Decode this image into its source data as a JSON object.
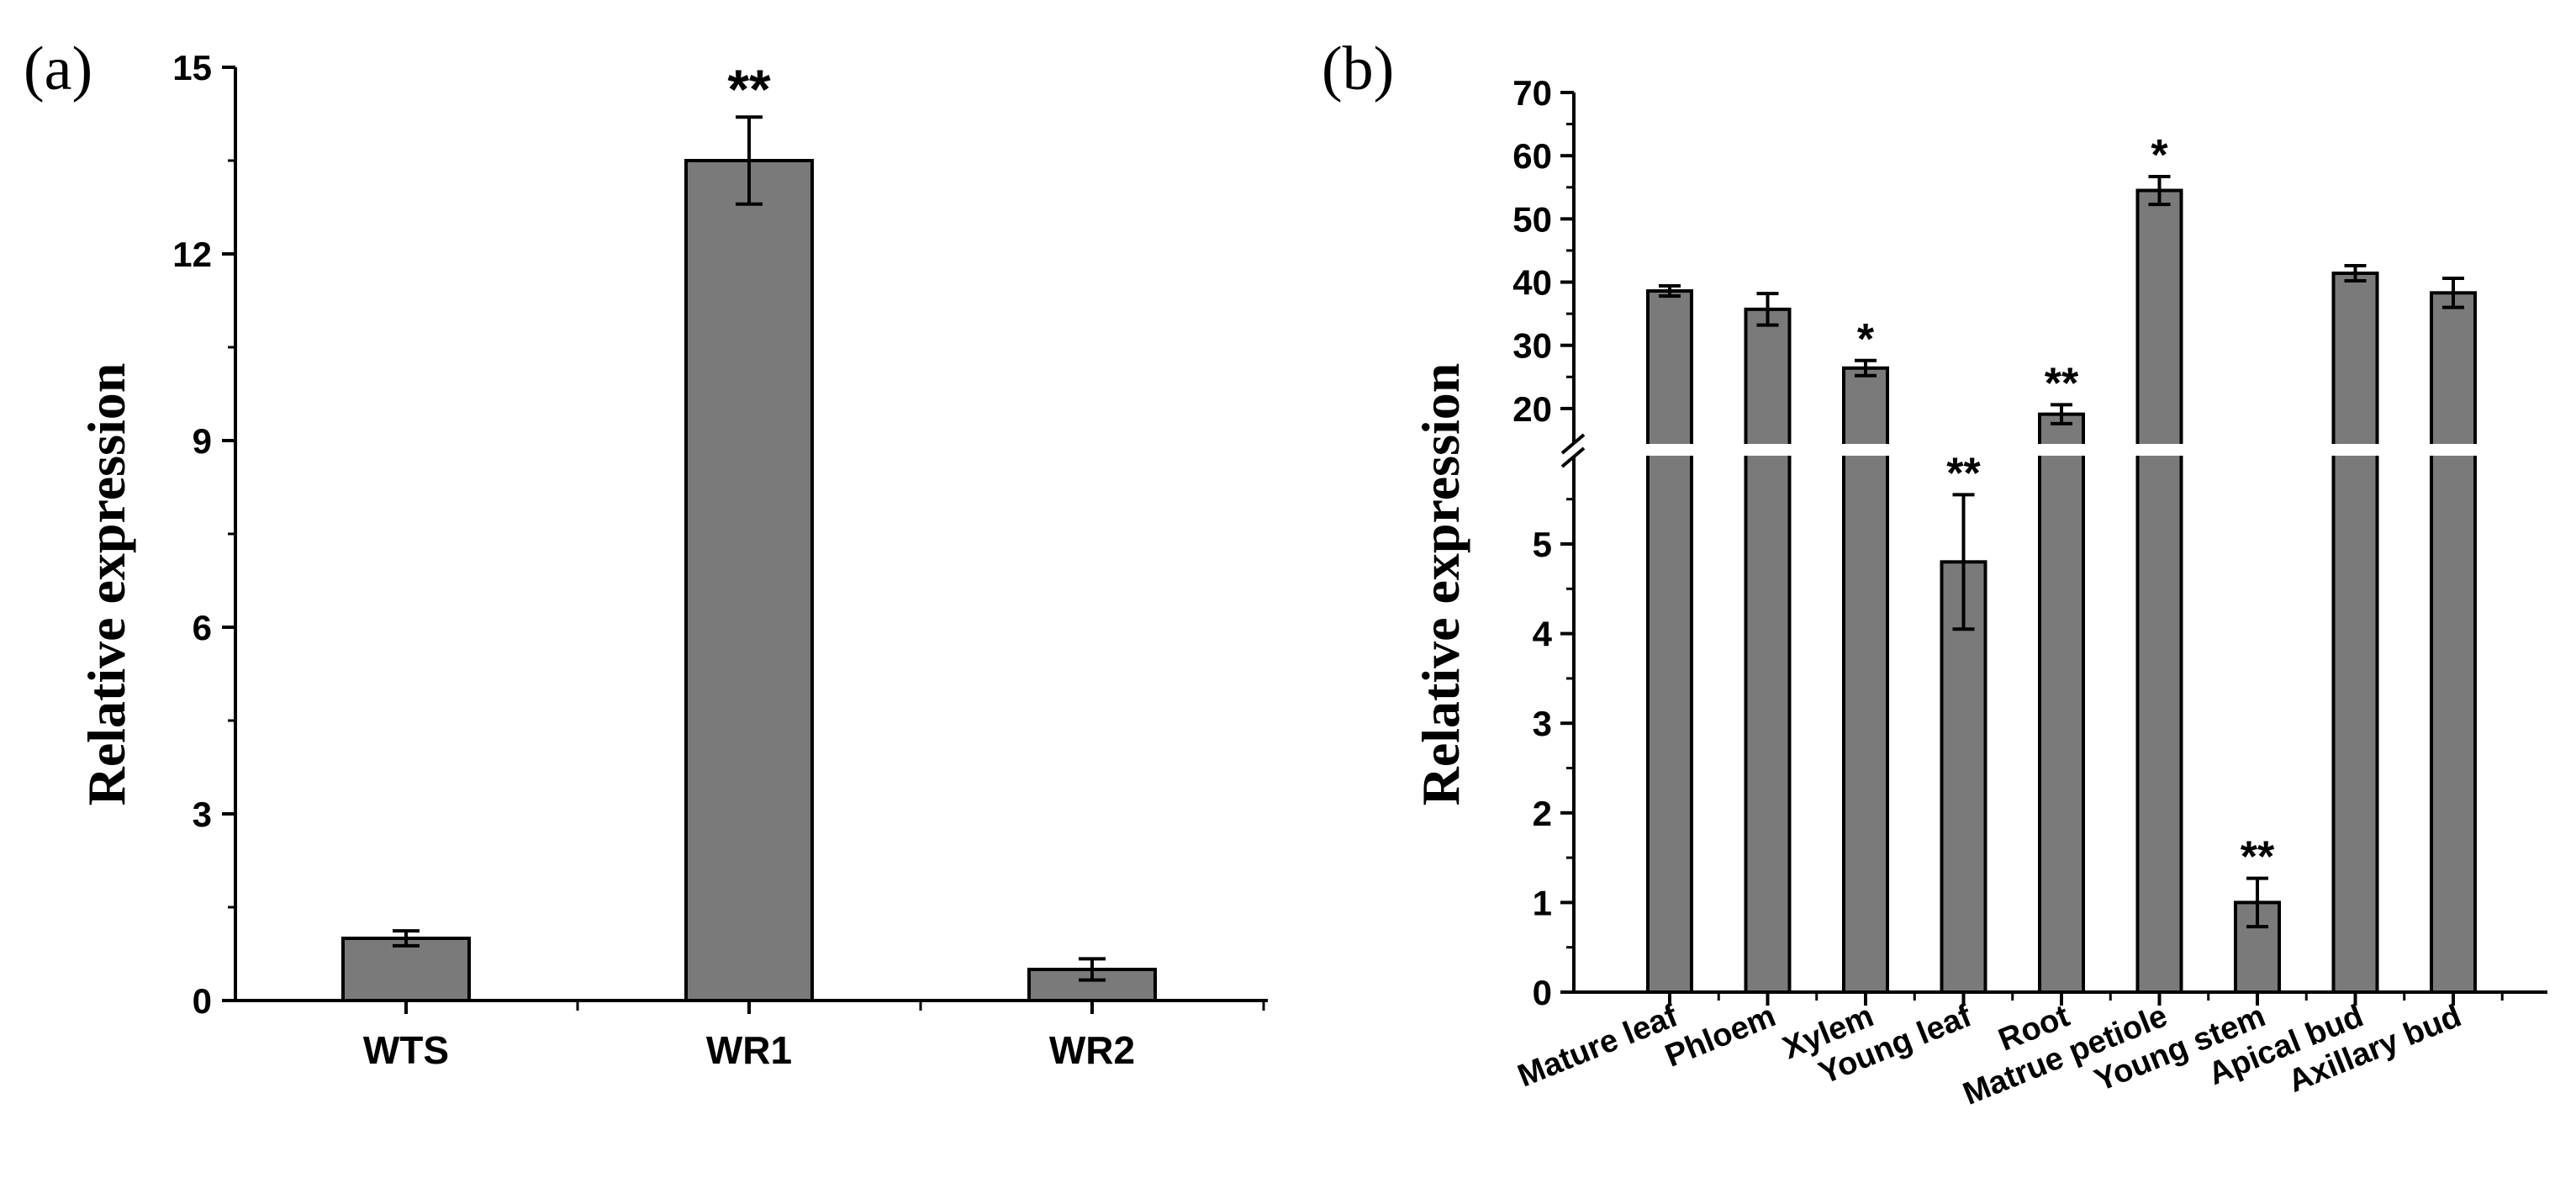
{
  "colors": {
    "bar": "#7a7a7a",
    "axis": "#000000",
    "background": "#ffffff"
  },
  "chart_data": [
    {
      "panel_label": "(a)",
      "type": "bar",
      "categories": [
        "WTS",
        "WR1",
        "WR2"
      ],
      "values": [
        1.0,
        13.5,
        0.5
      ],
      "errors": [
        0.12,
        0.7,
        0.17
      ],
      "annotations": [
        "",
        "**",
        ""
      ],
      "ylabel": "Relative expression",
      "xlabel": "",
      "ylim": [
        0,
        15
      ],
      "yticks": [
        0,
        3,
        6,
        9,
        12,
        15
      ],
      "ytick_labels": [
        "0",
        "3",
        "6",
        "9",
        "12",
        "15"
      ]
    },
    {
      "panel_label": "(b)",
      "type": "bar",
      "broken_axis": true,
      "categories": [
        "Mature leaf",
        "Phloem",
        "Xylem",
        "Young leaf",
        "Root",
        "Matrue petiole",
        "Young stem",
        "Apical bud",
        "Axillary bud"
      ],
      "values": [
        38.6,
        35.7,
        26.4,
        4.8,
        19.1,
        54.5,
        1.0,
        41.4,
        38.3
      ],
      "errors": [
        0.8,
        2.5,
        1.2,
        0.75,
        1.5,
        2.2,
        0.27,
        1.2,
        2.3
      ],
      "annotations": [
        "",
        "",
        "*",
        "**",
        "**",
        "*",
        "**",
        "",
        ""
      ],
      "ylabel": "Relative expression",
      "xlabel": "",
      "ylim_lower": [
        0,
        5.8
      ],
      "ylim_upper": [
        14,
        70
      ],
      "yticks_lower": [
        0,
        1,
        2,
        3,
        4,
        5
      ],
      "ytick_labels_lower": [
        "0",
        "1",
        "2",
        "3",
        "4",
        "5"
      ],
      "yticks_upper": [
        20,
        30,
        40,
        50,
        60,
        70
      ],
      "ytick_labels_upper": [
        "20",
        "30",
        "40",
        "50",
        "60",
        "70"
      ]
    }
  ]
}
